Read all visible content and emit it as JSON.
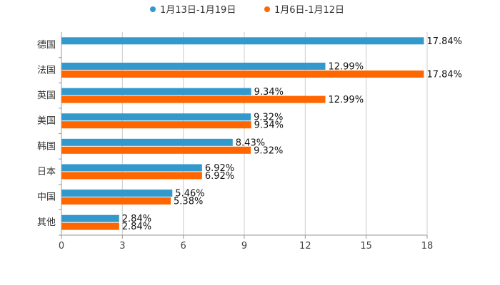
{
  "chart_data": {
    "type": "bar",
    "orientation": "horizontal",
    "categories": [
      "德国",
      "法国",
      "英国",
      "美国",
      "韩国",
      "日本",
      "中国",
      "其他"
    ],
    "series": [
      {
        "name": "1月13日-1月19日",
        "color": "#3399cc",
        "values": [
          17.84,
          12.99,
          9.34,
          9.32,
          8.43,
          6.92,
          5.46,
          2.84
        ]
      },
      {
        "name": "1月6日-1月12日",
        "color": "#ff6600",
        "values": [
          null,
          17.84,
          12.99,
          9.34,
          9.32,
          6.92,
          5.38,
          2.84
        ]
      }
    ],
    "labels": [
      [
        "17.84%",
        "12.99%",
        "9.34%",
        "9.32%",
        "8.43%",
        "6.92%",
        "5.46%",
        "2.84%"
      ],
      [
        null,
        "17.84%",
        "12.99%",
        "9.34%",
        "9.32%",
        "6.92%",
        "5.38%",
        "2.84%"
      ]
    ],
    "xlim": [
      0,
      18
    ],
    "xticks": [
      "0",
      "3",
      "6",
      "9",
      "12",
      "15",
      "18"
    ],
    "xtick_values": [
      0,
      3,
      6,
      9,
      12,
      15,
      18
    ],
    "legend_position": "top-center",
    "grid": true,
    "title": "",
    "xlabel": "",
    "ylabel": ""
  }
}
